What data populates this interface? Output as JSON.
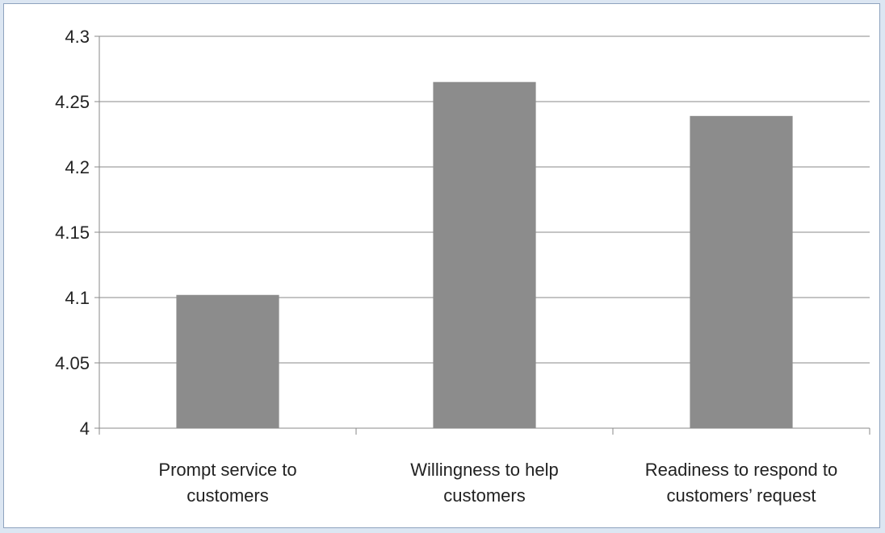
{
  "chart_data": {
    "type": "bar",
    "categories": [
      [
        "Prompt service to",
        "customers"
      ],
      [
        "Willingness to help",
        "customers"
      ],
      [
        "Readiness to respond to",
        "customers’ request"
      ]
    ],
    "values": [
      4.102,
      4.265,
      4.239
    ],
    "ylim": [
      4,
      4.3
    ],
    "yticks": [
      "4",
      "4.05",
      "4.1",
      "4.15",
      "4.2",
      "4.25",
      "4.3"
    ],
    "grid": true,
    "legend": "none",
    "title": "",
    "xlabel": "",
    "ylabel": ""
  },
  "colors": {
    "bar": "#8c8c8c",
    "grid": "#8a8a8a",
    "frame_border": "#8ea3bf",
    "background": "#dce6f2"
  }
}
